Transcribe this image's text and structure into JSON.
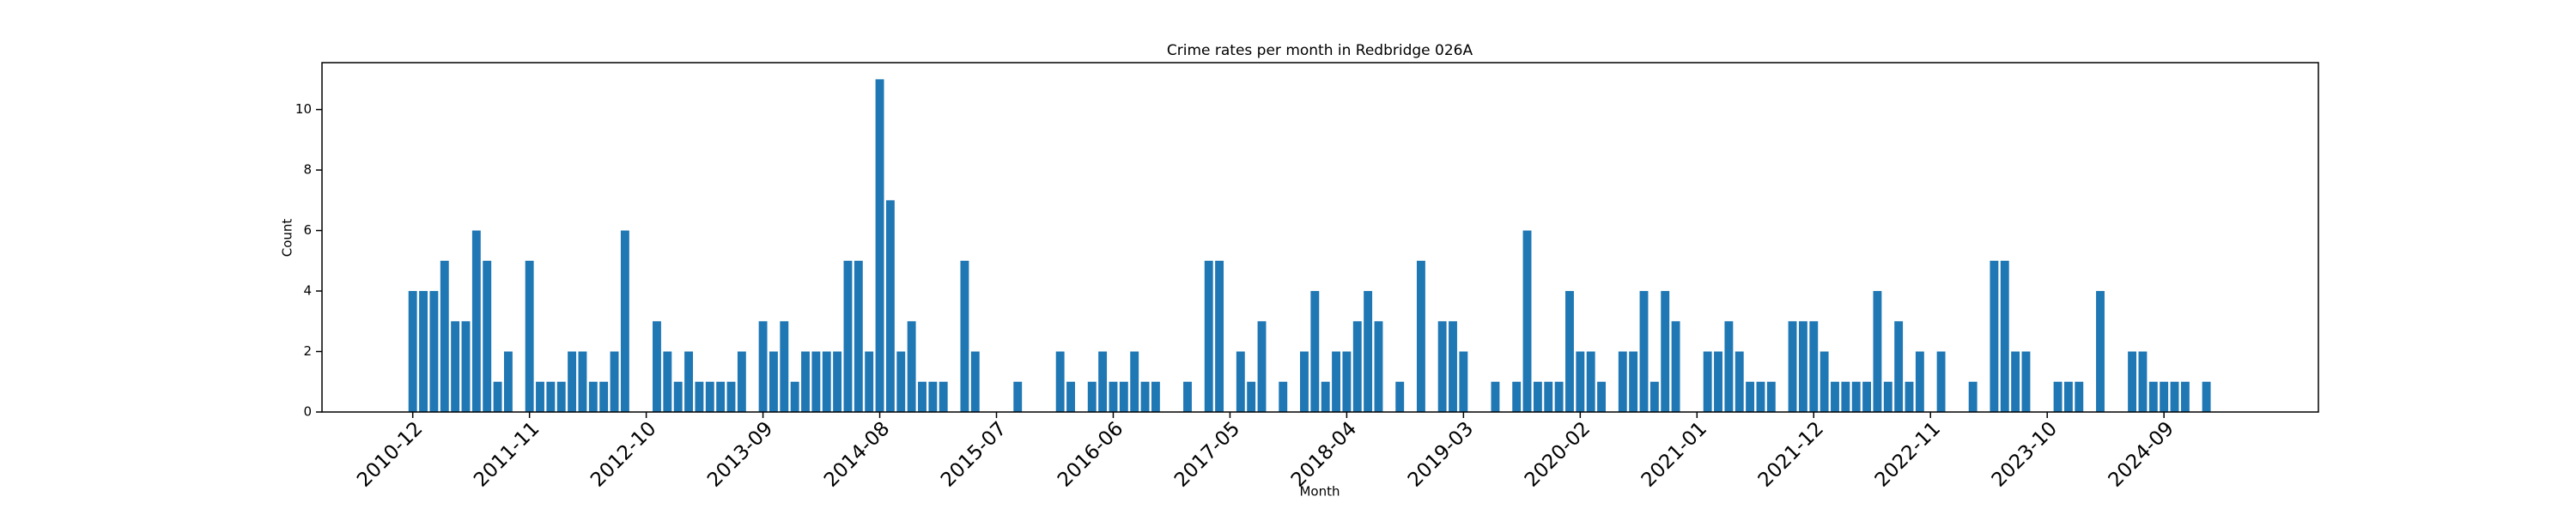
{
  "chart_data": {
    "type": "bar",
    "title": "Crime rates per month in Redbridge 026A",
    "xlabel": "Month",
    "ylabel": "Count",
    "color": "#1f77b4",
    "categories": [
      "2010-12",
      null,
      null,
      null,
      null,
      null,
      null,
      null,
      null,
      null,
      null,
      "2011-11",
      null,
      null,
      null,
      null,
      null,
      null,
      null,
      null,
      null,
      null,
      "2012-10",
      null,
      null,
      null,
      null,
      null,
      null,
      null,
      null,
      null,
      null,
      "2013-09",
      null,
      null,
      null,
      null,
      null,
      null,
      null,
      null,
      null,
      null,
      "2014-08",
      null,
      null,
      null,
      null,
      null,
      null,
      null,
      null,
      null,
      null,
      "2015-07",
      null,
      null,
      null,
      null,
      null,
      null,
      null,
      null,
      null,
      null,
      "2016-06",
      null,
      null,
      null,
      null,
      null,
      null,
      null,
      null,
      null,
      null,
      "2017-05",
      null,
      null,
      null,
      null,
      null,
      null,
      null,
      null,
      null,
      null,
      "2018-04",
      null,
      null,
      null,
      null,
      null,
      null,
      null,
      null,
      null,
      null,
      "2019-03",
      null,
      null,
      null,
      null,
      null,
      null,
      null,
      null,
      null,
      null,
      "2020-02",
      null,
      null,
      null,
      null,
      null,
      null,
      null,
      null,
      null,
      null,
      "2021-01",
      null,
      null,
      null,
      null,
      null,
      null,
      null,
      null,
      null,
      null,
      "2021-12",
      null,
      null,
      null,
      null,
      null,
      null,
      null,
      null,
      null,
      null,
      "2022-11",
      null,
      null,
      null,
      null,
      null,
      null,
      null,
      null,
      null,
      null,
      "2023-10",
      null,
      null,
      null,
      null,
      null,
      null,
      null,
      null,
      null,
      null,
      "2024-09",
      null,
      null,
      null,
      null,
      null,
      null
    ],
    "values": [
      4,
      4,
      4,
      5,
      3,
      3,
      6,
      5,
      1,
      2,
      0,
      5,
      1,
      1,
      1,
      2,
      2,
      1,
      1,
      2,
      6,
      0,
      0,
      3,
      2,
      1,
      2,
      1,
      1,
      1,
      1,
      2,
      0,
      3,
      2,
      3,
      1,
      2,
      2,
      2,
      2,
      5,
      5,
      2,
      11,
      7,
      2,
      3,
      1,
      1,
      1,
      0,
      5,
      2,
      0,
      0,
      0,
      1,
      0,
      0,
      0,
      2,
      1,
      0,
      1,
      2,
      1,
      1,
      2,
      1,
      1,
      0,
      0,
      1,
      0,
      5,
      5,
      0,
      2,
      1,
      3,
      0,
      1,
      0,
      2,
      4,
      1,
      2,
      2,
      3,
      4,
      3,
      0,
      1,
      0,
      5,
      0,
      3,
      3,
      2,
      0,
      0,
      1,
      0,
      1,
      6,
      1,
      1,
      1,
      4,
      2,
      2,
      1,
      0,
      2,
      2,
      4,
      1,
      4,
      3,
      0,
      0,
      2,
      2,
      3,
      2,
      1,
      1,
      1,
      0,
      3,
      3,
      3,
      2,
      1,
      1,
      1,
      1,
      4,
      1,
      3,
      1,
      2,
      0,
      2,
      0,
      0,
      1,
      0,
      5,
      5,
      2,
      2,
      0,
      0,
      1,
      1,
      1,
      0,
      4,
      0,
      0,
      2,
      2,
      1,
      1,
      1,
      1,
      0,
      1,
      0,
      0
    ],
    "ylim": [
      0,
      11.55
    ],
    "yticks": [
      0,
      2,
      4,
      6,
      8,
      10
    ],
    "grid": false
  }
}
